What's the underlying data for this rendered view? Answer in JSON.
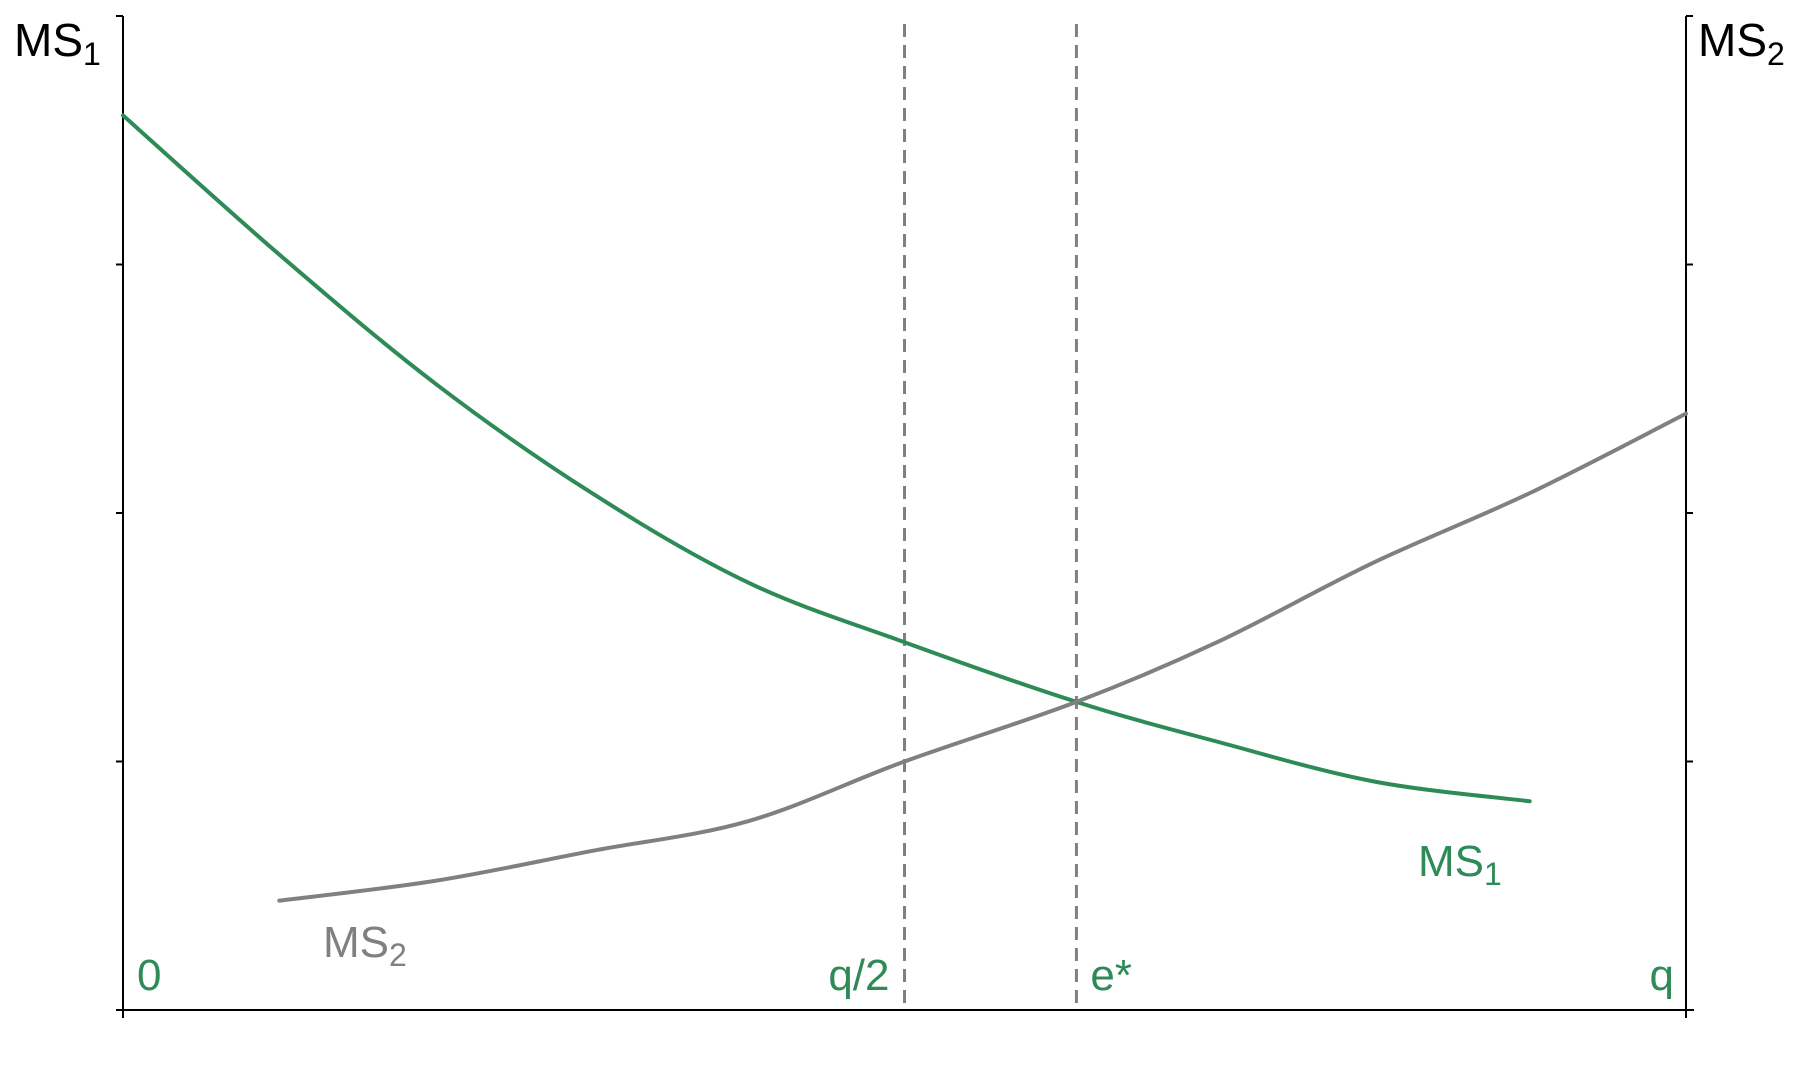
{
  "chart_data": {
    "type": "line",
    "colors": {
      "ms1": "#2e8b57",
      "ms2": "#808080",
      "axis": "#000000",
      "guide": "#808080"
    },
    "axes": {
      "left_title": {
        "main": "MS",
        "sub": "1"
      },
      "right_title": {
        "main": "MS",
        "sub": "2"
      }
    },
    "xlim": [
      0,
      1
    ],
    "ylim": [
      0,
      1
    ],
    "x_ticks": [
      0,
      1
    ],
    "y_ticks": [
      0.25,
      0.5,
      0.75,
      1.0
    ],
    "grid": false,
    "x_markers": [
      {
        "x": 0.0,
        "label": "0"
      },
      {
        "x": 0.5,
        "label": "q/2",
        "dashed": true
      },
      {
        "x": 0.61,
        "label": "e*",
        "dashed": true
      },
      {
        "x": 1.0,
        "label": "q"
      }
    ],
    "series": [
      {
        "name": {
          "main": "MS",
          "sub": "1"
        },
        "color": "#2e8b57",
        "x": [
          0,
          0.1,
          0.2,
          0.3,
          0.4,
          0.5,
          0.61,
          0.7,
          0.8,
          0.9
        ],
        "y": [
          0.9,
          0.76,
          0.63,
          0.52,
          0.43,
          0.37,
          0.31,
          0.27,
          0.23,
          0.21
        ]
      },
      {
        "name": {
          "main": "MS",
          "sub": "2"
        },
        "color": "#808080",
        "x": [
          0.1,
          0.2,
          0.3,
          0.4,
          0.5,
          0.61,
          0.7,
          0.8,
          0.9,
          1.0
        ],
        "y": [
          0.11,
          0.13,
          0.16,
          0.19,
          0.25,
          0.31,
          0.37,
          0.45,
          0.52,
          0.6
        ]
      }
    ]
  }
}
